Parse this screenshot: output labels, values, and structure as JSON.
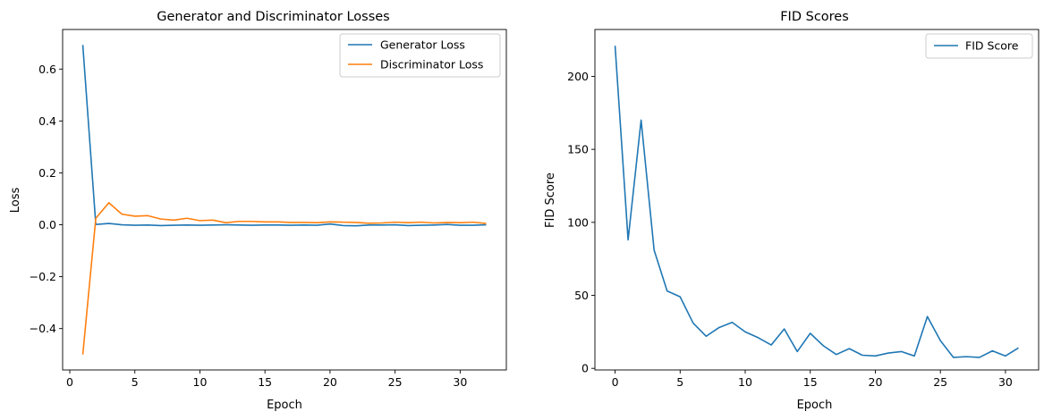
{
  "chart_data": [
    {
      "type": "line",
      "title": "Generator and Discriminator Losses",
      "xlabel": "Epoch",
      "ylabel": "Loss",
      "xlim": [
        -0.55,
        33.55
      ],
      "ylim": [
        -0.5595,
        0.7525
      ],
      "xticks": [
        0,
        5,
        10,
        15,
        20,
        25,
        30
      ],
      "yticks": [
        -0.4,
        -0.2,
        0.0,
        0.2,
        0.4,
        0.6
      ],
      "ytick_labels": [
        "−0.4",
        "−0.2",
        "0.0",
        "0.2",
        "0.4",
        "0.6"
      ],
      "legend": "top-right",
      "series": [
        {
          "name": "Generator Loss",
          "color": "#1f77b4",
          "x": [
            1,
            2,
            3,
            4,
            5,
            6,
            7,
            8,
            9,
            10,
            11,
            12,
            13,
            14,
            15,
            16,
            17,
            18,
            19,
            20,
            21,
            22,
            23,
            24,
            25,
            26,
            27,
            28,
            29,
            30,
            31,
            32
          ],
          "y": [
            0.693,
            0.001,
            0.005,
            0.0,
            -0.002,
            -0.001,
            -0.003,
            -0.002,
            -0.001,
            -0.002,
            -0.001,
            0.0,
            -0.001,
            -0.002,
            -0.001,
            -0.001,
            -0.002,
            -0.001,
            -0.002,
            0.003,
            -0.003,
            -0.004,
            -0.001,
            -0.001,
            0.0,
            -0.003,
            -0.002,
            -0.001,
            0.001,
            -0.002,
            -0.002,
            0.0
          ]
        },
        {
          "name": "Discriminator Loss",
          "color": "#ff7f0e",
          "x": [
            1,
            2,
            3,
            4,
            5,
            6,
            7,
            8,
            9,
            10,
            11,
            12,
            13,
            14,
            15,
            16,
            17,
            18,
            19,
            20,
            21,
            22,
            23,
            24,
            25,
            26,
            27,
            28,
            29,
            30,
            31,
            32
          ],
          "y": [
            -0.5,
            0.025,
            0.085,
            0.041,
            0.033,
            0.035,
            0.022,
            0.018,
            0.025,
            0.016,
            0.018,
            0.008,
            0.013,
            0.013,
            0.011,
            0.011,
            0.009,
            0.009,
            0.008,
            0.011,
            0.01,
            0.009,
            0.006,
            0.007,
            0.01,
            0.008,
            0.01,
            0.007,
            0.009,
            0.008,
            0.01,
            0.005
          ]
        }
      ]
    },
    {
      "type": "line",
      "title": "FID Scores",
      "xlabel": "Epoch",
      "ylabel": "FID Score",
      "xlim": [
        -1.55,
        32.55
      ],
      "ylim": [
        -1.1,
        232.1
      ],
      "xticks": [
        0,
        5,
        10,
        15,
        20,
        25,
        30
      ],
      "yticks": [
        0,
        50,
        100,
        150,
        200
      ],
      "ytick_labels": [
        "0",
        "50",
        "100",
        "150",
        "200"
      ],
      "legend": "top-right",
      "series": [
        {
          "name": "FID Score",
          "color": "#1f77b4",
          "x": [
            0,
            1,
            2,
            3,
            4,
            5,
            6,
            7,
            8,
            9,
            10,
            11,
            12,
            13,
            14,
            15,
            16,
            17,
            18,
            19,
            20,
            21,
            22,
            23,
            24,
            25,
            26,
            27,
            28,
            29,
            30,
            31
          ],
          "y": [
            221,
            88,
            170,
            81,
            53,
            49,
            31,
            22,
            28,
            31.5,
            25,
            21,
            16,
            27,
            11.5,
            24,
            15.5,
            9.5,
            13.5,
            9,
            8.5,
            10.5,
            11.5,
            8.5,
            35.5,
            19,
            7.5,
            8,
            7.5,
            12,
            8.5,
            14
          ]
        }
      ]
    }
  ]
}
